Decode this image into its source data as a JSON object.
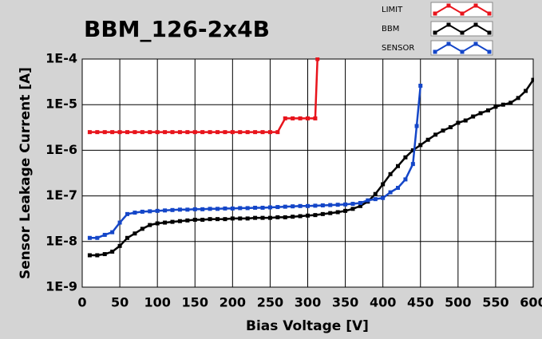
{
  "chart_data": {
    "type": "line",
    "title": "BBM_126-2x4B",
    "x_label": "Bias Voltage [V]",
    "y_label": "Sensor Leakage Current [A]",
    "xlim": [
      0,
      600
    ],
    "xticks": [
      0,
      50,
      100,
      150,
      200,
      250,
      300,
      350,
      400,
      450,
      500,
      550,
      600
    ],
    "ylim": [
      1e-09,
      0.0001
    ],
    "yticks": [
      {
        "value": 1e-09,
        "label": "1E-9"
      },
      {
        "value": 1e-08,
        "label": "1E-8"
      },
      {
        "value": 1e-07,
        "label": "1E-7"
      },
      {
        "value": 1e-06,
        "label": "1E-6"
      },
      {
        "value": 1e-05,
        "label": "1E-5"
      },
      {
        "value": 0.0001,
        "label": "1E-4"
      }
    ],
    "y_log": true,
    "grid": true,
    "series": [
      {
        "name": "LIMIT",
        "color": "#e8141c",
        "x": [
          10,
          20,
          30,
          40,
          50,
          60,
          70,
          80,
          90,
          100,
          110,
          120,
          130,
          140,
          150,
          160,
          170,
          180,
          190,
          200,
          210,
          220,
          230,
          240,
          250,
          260,
          270,
          280,
          290,
          300,
          310,
          313
        ],
        "values": [
          2.5e-06,
          2.5e-06,
          2.5e-06,
          2.5e-06,
          2.5e-06,
          2.5e-06,
          2.5e-06,
          2.5e-06,
          2.5e-06,
          2.5e-06,
          2.5e-06,
          2.5e-06,
          2.5e-06,
          2.5e-06,
          2.5e-06,
          2.5e-06,
          2.5e-06,
          2.5e-06,
          2.5e-06,
          2.5e-06,
          2.5e-06,
          2.5e-06,
          2.5e-06,
          2.5e-06,
          2.5e-06,
          2.5e-06,
          5e-06,
          5e-06,
          5e-06,
          5e-06,
          5e-06,
          0.0001
        ]
      },
      {
        "name": "BBM",
        "color": "#000000",
        "x": [
          10,
          20,
          30,
          40,
          50,
          60,
          70,
          80,
          90,
          100,
          110,
          120,
          130,
          140,
          150,
          160,
          170,
          180,
          190,
          200,
          210,
          220,
          230,
          240,
          250,
          260,
          270,
          280,
          290,
          300,
          310,
          320,
          330,
          340,
          350,
          360,
          370,
          380,
          390,
          400,
          410,
          420,
          430,
          440,
          450,
          460,
          470,
          480,
          490,
          500,
          510,
          520,
          530,
          540,
          550,
          560,
          570,
          580,
          590,
          600
        ],
        "values": [
          5e-09,
          5e-09,
          5.3e-09,
          6e-09,
          8e-09,
          1.2e-08,
          1.5e-08,
          1.9e-08,
          2.3e-08,
          2.5e-08,
          2.6e-08,
          2.7e-08,
          2.8e-08,
          2.9e-08,
          3e-08,
          3e-08,
          3.1e-08,
          3.1e-08,
          3.1e-08,
          3.2e-08,
          3.2e-08,
          3.2e-08,
          3.3e-08,
          3.3e-08,
          3.3e-08,
          3.4e-08,
          3.4e-08,
          3.5e-08,
          3.6e-08,
          3.7e-08,
          3.8e-08,
          4e-08,
          4.2e-08,
          4.4e-08,
          4.7e-08,
          5.2e-08,
          6e-08,
          7.5e-08,
          1.1e-07,
          1.8e-07,
          3e-07,
          4.5e-07,
          7e-07,
          1e-06,
          1.3e-06,
          1.7e-06,
          2.2e-06,
          2.7e-06,
          3.2e-06,
          4e-06,
          4.5e-06,
          5.5e-06,
          6.5e-06,
          7.5e-06,
          9e-06,
          1e-05,
          1.1e-05,
          1.4e-05,
          2e-05,
          3.5e-05
        ]
      },
      {
        "name": "SENSOR",
        "color": "#1446c8",
        "x": [
          10,
          20,
          30,
          40,
          50,
          60,
          70,
          80,
          90,
          100,
          110,
          120,
          130,
          140,
          150,
          160,
          170,
          180,
          190,
          200,
          210,
          220,
          230,
          240,
          250,
          260,
          270,
          280,
          290,
          300,
          310,
          320,
          330,
          340,
          350,
          360,
          370,
          380,
          390,
          400,
          410,
          420,
          430,
          440,
          445,
          450
        ],
        "values": [
          1.2e-08,
          1.2e-08,
          1.4e-08,
          1.6e-08,
          2.6e-08,
          4e-08,
          4.3e-08,
          4.5e-08,
          4.6e-08,
          4.7e-08,
          4.8e-08,
          4.9e-08,
          5e-08,
          5e-08,
          5.1e-08,
          5.1e-08,
          5.2e-08,
          5.2e-08,
          5.3e-08,
          5.3e-08,
          5.4e-08,
          5.4e-08,
          5.5e-08,
          5.5e-08,
          5.6e-08,
          5.7e-08,
          5.8e-08,
          5.9e-08,
          6e-08,
          6e-08,
          6.1e-08,
          6.2e-08,
          6.3e-08,
          6.4e-08,
          6.5e-08,
          6.7e-08,
          7e-08,
          8e-08,
          8.5e-08,
          9e-08,
          1.2e-07,
          1.5e-07,
          2.3e-07,
          5e-07,
          3.4e-06,
          2.6e-05
        ]
      }
    ]
  }
}
